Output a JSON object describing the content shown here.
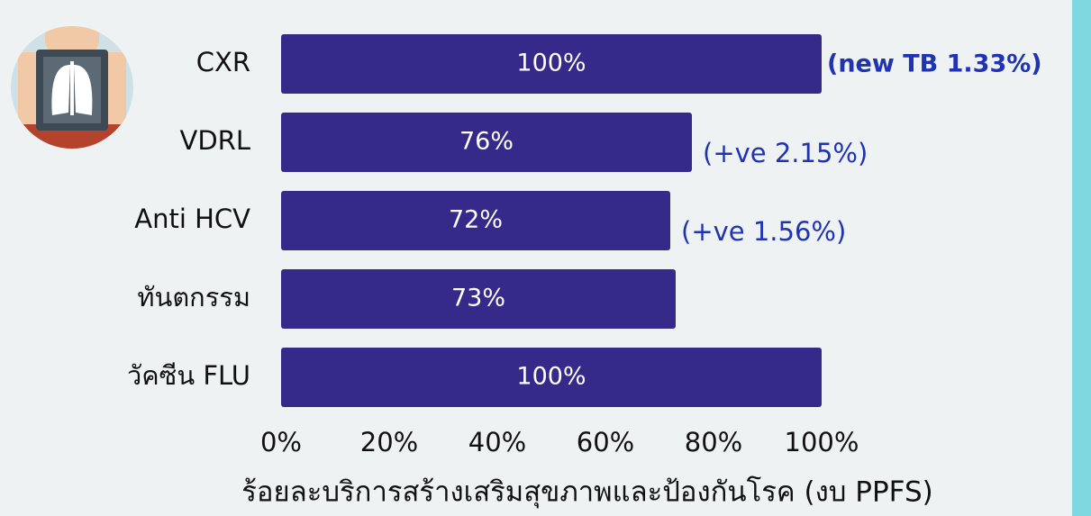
{
  "chart_data": {
    "type": "hbar",
    "title": "ร้อยละบริการสร้างเสริมสุขภาพและป้องกันโรค (งบ PPFS)",
    "categories": [
      "CXR",
      "VDRL",
      "Anti HCV",
      "ทันตกรรม",
      "วัคซีน FLU"
    ],
    "values": [
      100,
      76,
      72,
      73,
      100
    ],
    "value_labels": [
      "100%",
      "76%",
      "72%",
      "73%",
      "100%"
    ],
    "annotations": [
      "(new TB 1.33%)",
      "(+ve 2.15%)",
      "(+ve 1.56%)",
      null,
      null
    ],
    "color": "#35298a",
    "xlim": [
      0,
      100
    ],
    "xticks": [
      {
        "value": 0,
        "label": "0%"
      },
      {
        "value": 20,
        "label": "20%"
      },
      {
        "value": 40,
        "label": "40%"
      },
      {
        "value": 60,
        "label": "60%"
      },
      {
        "value": 80,
        "label": "80%"
      },
      {
        "value": 100,
        "label": "100%"
      }
    ],
    "grid": false
  }
}
